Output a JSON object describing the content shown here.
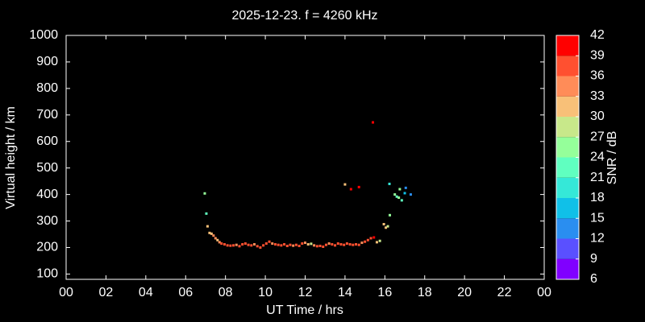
{
  "chart_data": {
    "type": "scatter",
    "title": "2025-12-23. f = 4260 kHz",
    "x_label": "UT Time / hrs",
    "y_label": "Virtual height / km",
    "colorbar_label": "SNR / dB",
    "xlim": [
      0,
      24
    ],
    "xticks": [
      {
        "value": 0,
        "label": "00"
      },
      {
        "value": 2,
        "label": "02"
      },
      {
        "value": 4,
        "label": "04"
      },
      {
        "value": 6,
        "label": "06"
      },
      {
        "value": 8,
        "label": "08"
      },
      10,
      12,
      14,
      16,
      18,
      20,
      22,
      {
        "value": 24,
        "label": "00"
      }
    ],
    "ylim": [
      80,
      1000
    ],
    "yticks": [
      100,
      200,
      300,
      400,
      500,
      600,
      700,
      800,
      900,
      1000
    ],
    "clim": [
      6,
      42
    ],
    "cticks": [
      6,
      9,
      12,
      15,
      18,
      21,
      24,
      27,
      30,
      33,
      36,
      39,
      42
    ],
    "colorscale": [
      "#8000ff",
      "#5a50ff",
      "#2a8ef0",
      "#10c0e8",
      "#35e8d8",
      "#60ffc0",
      "#95ff9a",
      "#c8e88a",
      "#f8c078",
      "#ff8c58",
      "#ff5030",
      "#ff0000"
    ],
    "x": [
      6.96,
      7.04,
      7.1,
      7.2,
      7.3,
      7.4,
      7.5,
      7.6,
      7.7,
      7.8,
      7.95,
      8.1,
      8.25,
      8.4,
      8.55,
      8.7,
      8.85,
      9.0,
      9.15,
      9.3,
      9.45,
      9.6,
      9.75,
      9.9,
      10.05,
      10.2,
      10.35,
      10.5,
      10.65,
      10.8,
      10.95,
      11.1,
      11.25,
      11.4,
      11.55,
      11.7,
      11.85,
      12.0,
      12.15,
      12.3,
      12.45,
      12.6,
      12.75,
      12.9,
      13.05,
      13.2,
      13.35,
      13.5,
      13.65,
      13.8,
      13.95,
      14.1,
      14.25,
      14.4,
      14.55,
      14.7,
      14.85,
      15.0,
      15.15,
      15.3,
      15.45,
      15.6,
      15.75,
      15.95,
      16.05,
      16.15,
      16.25,
      16.23,
      16.5,
      16.6,
      16.7,
      16.75,
      16.85,
      17.0,
      17.05,
      17.3,
      14.0,
      14.3,
      14.7,
      15.4
    ],
    "values": [
      404,
      328,
      280,
      255,
      252,
      245,
      235,
      228,
      220,
      215,
      212,
      208,
      207,
      208,
      210,
      205,
      212,
      215,
      210,
      208,
      212,
      205,
      200,
      208,
      215,
      222,
      215,
      212,
      210,
      208,
      212,
      206,
      210,
      207,
      210,
      206,
      215,
      218,
      212,
      214,
      208,
      205,
      206,
      203,
      210,
      215,
      212,
      208,
      215,
      212,
      210,
      215,
      212,
      210,
      212,
      210,
      218,
      222,
      228,
      235,
      238,
      220,
      225,
      288,
      275,
      280,
      322,
      440,
      400,
      392,
      388,
      420,
      378,
      405,
      425,
      400,
      438,
      420,
      428,
      672
    ],
    "z": [
      25,
      22,
      31,
      31,
      31,
      34,
      34,
      31,
      34,
      37,
      37,
      37,
      37,
      37,
      34,
      37,
      37,
      37,
      37,
      37,
      34,
      37,
      37,
      37,
      37,
      37,
      34,
      37,
      37,
      37,
      37,
      37,
      37,
      34,
      37,
      37,
      37,
      34,
      31,
      28,
      34,
      37,
      37,
      37,
      37,
      34,
      37,
      37,
      37,
      37,
      37,
      37,
      37,
      37,
      37,
      37,
      34,
      37,
      37,
      37,
      40,
      31,
      28,
      31,
      31,
      28,
      25,
      19,
      25,
      22,
      25,
      25,
      22,
      16,
      13,
      13,
      31,
      40,
      40,
      40
    ]
  }
}
